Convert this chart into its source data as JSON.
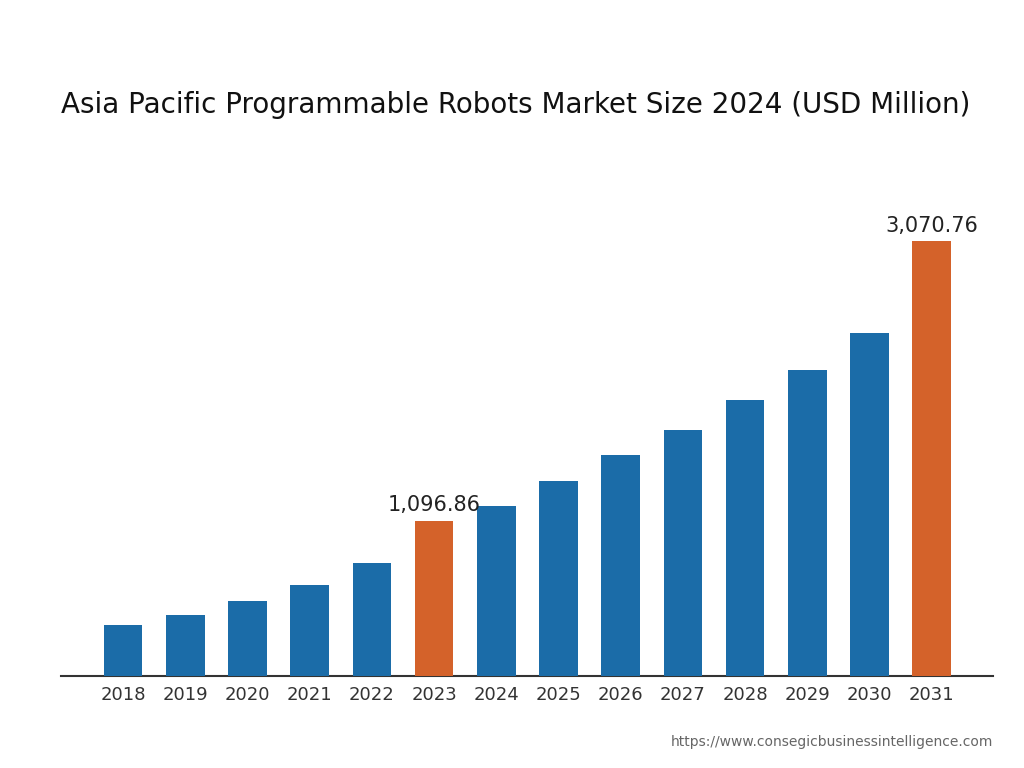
{
  "title": "Asia Pacific Programmable Robots Market Size 2024 (USD Million)",
  "years": [
    2018,
    2019,
    2020,
    2021,
    2022,
    2023,
    2024,
    2025,
    2026,
    2027,
    2028,
    2029,
    2030,
    2031
  ],
  "values": [
    360,
    430,
    530,
    640,
    800,
    1096.86,
    1200,
    1380,
    1560,
    1740,
    1950,
    2160,
    2420,
    3070.76
  ],
  "bar_colors": [
    "#1b6ca8",
    "#1b6ca8",
    "#1b6ca8",
    "#1b6ca8",
    "#1b6ca8",
    "#d4622a",
    "#1b6ca8",
    "#1b6ca8",
    "#1b6ca8",
    "#1b6ca8",
    "#1b6ca8",
    "#1b6ca8",
    "#1b6ca8",
    "#d4622a"
  ],
  "highlighted_labels": {
    "5": "1,096.86",
    "13": "3,070.76"
  },
  "background_color": "#ffffff",
  "title_fontsize": 20,
  "tick_fontsize": 13,
  "annotation_fontsize": 15,
  "watermark": "https://www.consegicbusinessintelligence.com",
  "ylim_max": 3800
}
